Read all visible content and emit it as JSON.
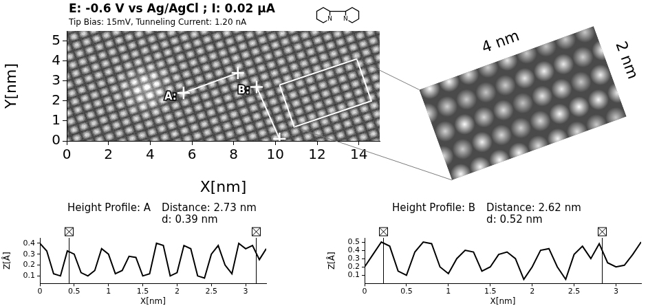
{
  "image_panel": {
    "title": "E: -0.6 V vs Ag/AgCl ; I: 0.02 µA",
    "subtitle": "Tip Bias: 15mV, Tunneling Current: 1.20 nA",
    "molecule_atom_labels": [
      "N",
      "N"
    ],
    "x_label": "X[nm]",
    "y_label": "Y[nm]",
    "xlim": [
      0,
      15
    ],
    "ylim": [
      0,
      5.5
    ],
    "xticks": [
      0,
      2,
      4,
      6,
      8,
      10,
      12,
      14
    ],
    "yticks": [
      0,
      1,
      2,
      3,
      4,
      5
    ],
    "profile_lines": [
      {
        "name": "A:",
        "start": [
          5.6,
          2.4
        ],
        "end": [
          8.2,
          3.4
        ],
        "color": "#ffffff"
      },
      {
        "name": "B:",
        "start": [
          9.1,
          2.7
        ],
        "end": [
          10.2,
          0.1
        ],
        "color": "#ffffff"
      }
    ],
    "zoom_box": {
      "corners": [
        [
          10.2,
          2.8
        ],
        [
          13.9,
          4.1
        ],
        [
          14.6,
          2.0
        ],
        [
          10.9,
          0.7
        ]
      ],
      "width_label": "4 nm",
      "height_label": "2 nm",
      "color": "#ffffff"
    }
  },
  "chart_data": [
    {
      "type": "line",
      "title": "Height Profile: A",
      "annotations": [
        "Distance: 2.73 nm",
        "d: 0.39 nm"
      ],
      "x": [
        0,
        0.1,
        0.2,
        0.3,
        0.4,
        0.5,
        0.6,
        0.7,
        0.8,
        0.9,
        1,
        1.1,
        1.2,
        1.3,
        1.4,
        1.5,
        1.6,
        1.7,
        1.8,
        1.9,
        2,
        2.1,
        2.2,
        2.3,
        2.4,
        2.5,
        2.6,
        2.7,
        2.8,
        2.9,
        3,
        3.1,
        3.2,
        3.3
      ],
      "values": [
        0.4,
        0.33,
        0.12,
        0.1,
        0.33,
        0.3,
        0.13,
        0.1,
        0.15,
        0.35,
        0.3,
        0.12,
        0.15,
        0.28,
        0.27,
        0.1,
        0.12,
        0.4,
        0.38,
        0.1,
        0.13,
        0.38,
        0.35,
        0.1,
        0.08,
        0.3,
        0.38,
        0.2,
        0.12,
        0.4,
        0.35,
        0.38,
        0.25,
        0.35
      ],
      "color": "#000000",
      "xlim": [
        0,
        3.3
      ],
      "ylim": [
        0.03,
        0.45
      ],
      "xticks": [
        0,
        0.5,
        1,
        1.5,
        2,
        2.5,
        3
      ],
      "yticks": [
        0.1,
        0.2,
        0.3,
        0.4
      ],
      "x_label": "X[nm]",
      "y_label": "Z[Å]",
      "cursors": [
        0.42,
        3.15
      ]
    },
    {
      "type": "line",
      "title": "Height Profile: B",
      "annotations": [
        "Distance: 2.62 nm",
        "d: 0.52 nm"
      ],
      "x": [
        0,
        0.1,
        0.2,
        0.3,
        0.4,
        0.5,
        0.6,
        0.7,
        0.8,
        0.9,
        1,
        1.1,
        1.2,
        1.3,
        1.4,
        1.5,
        1.6,
        1.7,
        1.8,
        1.9,
        2,
        2.1,
        2.2,
        2.3,
        2.4,
        2.5,
        2.6,
        2.7,
        2.8,
        2.9,
        3,
        3.1,
        3.2,
        3.3
      ],
      "values": [
        0.2,
        0.35,
        0.5,
        0.45,
        0.15,
        0.1,
        0.38,
        0.5,
        0.48,
        0.2,
        0.12,
        0.3,
        0.4,
        0.38,
        0.15,
        0.2,
        0.35,
        0.38,
        0.3,
        0.05,
        0.2,
        0.4,
        0.42,
        0.2,
        0.05,
        0.35,
        0.45,
        0.3,
        0.48,
        0.25,
        0.2,
        0.22,
        0.35,
        0.5
      ],
      "color": "#000000",
      "xlim": [
        0,
        3.3
      ],
      "ylim": [
        0,
        0.55
      ],
      "xticks": [
        0,
        0.5,
        1,
        1.5,
        2,
        2.5,
        3
      ],
      "yticks": [
        0.1,
        0.2,
        0.3,
        0.4,
        0.5
      ],
      "x_label": "X[nm]",
      "y_label": "Z[Å]",
      "cursors": [
        0.22,
        2.83
      ]
    }
  ]
}
